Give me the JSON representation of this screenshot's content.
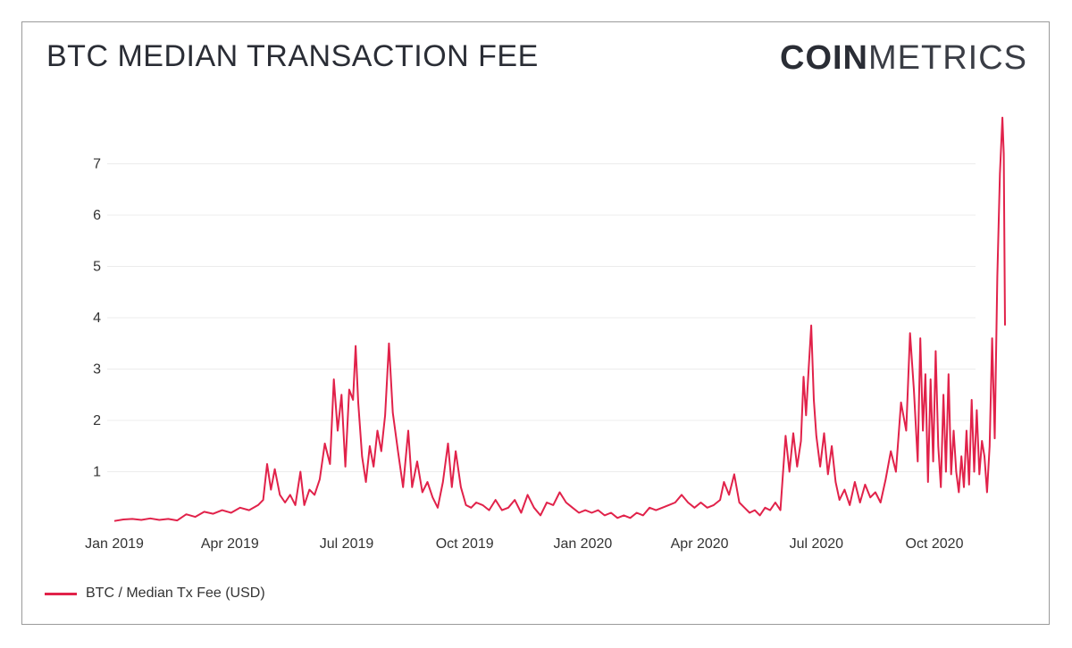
{
  "header": {
    "title": "BTC MEDIAN TRANSACTION FEE",
    "brand_bold": "COIN",
    "brand_light": "METRICS"
  },
  "legend": {
    "label": "BTC / Median Tx Fee (USD)"
  },
  "colors": {
    "series": "#e1224a",
    "grid": "#ececec",
    "text": "#333333"
  },
  "chart_data": {
    "type": "line",
    "title": "BTC MEDIAN TRANSACTION FEE",
    "xlabel": "",
    "ylabel": "",
    "x_range": [
      "2019-01-01",
      "2020-10-28"
    ],
    "ylim": [
      0,
      8
    ],
    "y_ticks": [
      1,
      2,
      3,
      4,
      5,
      6,
      7
    ],
    "x_ticks": [
      {
        "date": "2019-01-01",
        "label": "Jan 2019"
      },
      {
        "date": "2019-04-01",
        "label": "Apr 2019"
      },
      {
        "date": "2019-07-01",
        "label": "Jul 2019"
      },
      {
        "date": "2019-10-01",
        "label": "Oct 2019"
      },
      {
        "date": "2020-01-01",
        "label": "Jan 2020"
      },
      {
        "date": "2020-04-01",
        "label": "Apr 2020"
      },
      {
        "date": "2020-07-01",
        "label": "Jul 2020"
      },
      {
        "date": "2020-10-01",
        "label": "Oct 2020"
      }
    ],
    "grid": true,
    "legend_position": "bottom-left",
    "series": [
      {
        "name": "BTC / Median Tx Fee (USD)",
        "points": [
          [
            "2019-01-01",
            0.04
          ],
          [
            "2019-01-08",
            0.07
          ],
          [
            "2019-01-15",
            0.08
          ],
          [
            "2019-01-22",
            0.06
          ],
          [
            "2019-01-29",
            0.09
          ],
          [
            "2019-02-05",
            0.06
          ],
          [
            "2019-02-12",
            0.08
          ],
          [
            "2019-02-19",
            0.05
          ],
          [
            "2019-02-26",
            0.17
          ],
          [
            "2019-03-05",
            0.12
          ],
          [
            "2019-03-12",
            0.22
          ],
          [
            "2019-03-19",
            0.18
          ],
          [
            "2019-03-26",
            0.25
          ],
          [
            "2019-04-02",
            0.2
          ],
          [
            "2019-04-09",
            0.3
          ],
          [
            "2019-04-16",
            0.25
          ],
          [
            "2019-04-23",
            0.35
          ],
          [
            "2019-04-27",
            0.45
          ],
          [
            "2019-04-30",
            1.15
          ],
          [
            "2019-05-03",
            0.65
          ],
          [
            "2019-05-06",
            1.05
          ],
          [
            "2019-05-10",
            0.55
          ],
          [
            "2019-05-14",
            0.4
          ],
          [
            "2019-05-18",
            0.55
          ],
          [
            "2019-05-22",
            0.35
          ],
          [
            "2019-05-26",
            1.0
          ],
          [
            "2019-05-29",
            0.35
          ],
          [
            "2019-06-02",
            0.65
          ],
          [
            "2019-06-06",
            0.55
          ],
          [
            "2019-06-10",
            0.85
          ],
          [
            "2019-06-14",
            1.55
          ],
          [
            "2019-06-18",
            1.15
          ],
          [
            "2019-06-21",
            2.8
          ],
          [
            "2019-06-24",
            1.8
          ],
          [
            "2019-06-27",
            2.5
          ],
          [
            "2019-06-30",
            1.1
          ],
          [
            "2019-07-03",
            2.6
          ],
          [
            "2019-07-06",
            2.4
          ],
          [
            "2019-07-08",
            3.45
          ],
          [
            "2019-07-10",
            2.35
          ],
          [
            "2019-07-13",
            1.3
          ],
          [
            "2019-07-16",
            0.8
          ],
          [
            "2019-07-19",
            1.5
          ],
          [
            "2019-07-22",
            1.1
          ],
          [
            "2019-07-25",
            1.8
          ],
          [
            "2019-07-28",
            1.4
          ],
          [
            "2019-07-31",
            2.1
          ],
          [
            "2019-08-03",
            3.5
          ],
          [
            "2019-08-06",
            2.15
          ],
          [
            "2019-08-10",
            1.4
          ],
          [
            "2019-08-14",
            0.7
          ],
          [
            "2019-08-18",
            1.8
          ],
          [
            "2019-08-21",
            0.7
          ],
          [
            "2019-08-25",
            1.2
          ],
          [
            "2019-08-29",
            0.6
          ],
          [
            "2019-09-02",
            0.8
          ],
          [
            "2019-09-06",
            0.5
          ],
          [
            "2019-09-10",
            0.3
          ],
          [
            "2019-09-14",
            0.8
          ],
          [
            "2019-09-18",
            1.55
          ],
          [
            "2019-09-21",
            0.7
          ],
          [
            "2019-09-24",
            1.4
          ],
          [
            "2019-09-28",
            0.7
          ],
          [
            "2019-10-02",
            0.35
          ],
          [
            "2019-10-06",
            0.3
          ],
          [
            "2019-10-10",
            0.4
          ],
          [
            "2019-10-15",
            0.35
          ],
          [
            "2019-10-20",
            0.25
          ],
          [
            "2019-10-25",
            0.45
          ],
          [
            "2019-10-30",
            0.25
          ],
          [
            "2019-11-04",
            0.3
          ],
          [
            "2019-11-09",
            0.45
          ],
          [
            "2019-11-14",
            0.2
          ],
          [
            "2019-11-19",
            0.55
          ],
          [
            "2019-11-24",
            0.3
          ],
          [
            "2019-11-29",
            0.15
          ],
          [
            "2019-12-04",
            0.4
          ],
          [
            "2019-12-09",
            0.35
          ],
          [
            "2019-12-14",
            0.6
          ],
          [
            "2019-12-19",
            0.4
          ],
          [
            "2019-12-24",
            0.3
          ],
          [
            "2019-12-29",
            0.2
          ],
          [
            "2020-01-03",
            0.25
          ],
          [
            "2020-01-08",
            0.2
          ],
          [
            "2020-01-13",
            0.25
          ],
          [
            "2020-01-18",
            0.15
          ],
          [
            "2020-01-23",
            0.2
          ],
          [
            "2020-01-28",
            0.1
          ],
          [
            "2020-02-02",
            0.15
          ],
          [
            "2020-02-07",
            0.1
          ],
          [
            "2020-02-12",
            0.2
          ],
          [
            "2020-02-17",
            0.15
          ],
          [
            "2020-02-22",
            0.3
          ],
          [
            "2020-02-27",
            0.25
          ],
          [
            "2020-03-03",
            0.3
          ],
          [
            "2020-03-08",
            0.35
          ],
          [
            "2020-03-13",
            0.4
          ],
          [
            "2020-03-18",
            0.55
          ],
          [
            "2020-03-23",
            0.4
          ],
          [
            "2020-03-28",
            0.3
          ],
          [
            "2020-04-02",
            0.4
          ],
          [
            "2020-04-07",
            0.3
          ],
          [
            "2020-04-12",
            0.35
          ],
          [
            "2020-04-17",
            0.45
          ],
          [
            "2020-04-20",
            0.8
          ],
          [
            "2020-04-24",
            0.55
          ],
          [
            "2020-04-28",
            0.95
          ],
          [
            "2020-05-02",
            0.4
          ],
          [
            "2020-05-06",
            0.3
          ],
          [
            "2020-05-10",
            0.2
          ],
          [
            "2020-05-14",
            0.25
          ],
          [
            "2020-05-18",
            0.15
          ],
          [
            "2020-05-22",
            0.3
          ],
          [
            "2020-05-26",
            0.25
          ],
          [
            "2020-05-30",
            0.4
          ],
          [
            "2020-06-03",
            0.25
          ],
          [
            "2020-06-07",
            1.7
          ],
          [
            "2020-06-10",
            1.0
          ],
          [
            "2020-06-13",
            1.75
          ],
          [
            "2020-06-16",
            1.1
          ],
          [
            "2020-06-19",
            1.6
          ],
          [
            "2020-06-21",
            2.85
          ],
          [
            "2020-06-23",
            2.1
          ],
          [
            "2020-06-25",
            3.0
          ],
          [
            "2020-06-27",
            3.85
          ],
          [
            "2020-06-29",
            2.4
          ],
          [
            "2020-07-01",
            1.7
          ],
          [
            "2020-07-04",
            1.1
          ],
          [
            "2020-07-07",
            1.75
          ],
          [
            "2020-07-10",
            0.95
          ],
          [
            "2020-07-13",
            1.5
          ],
          [
            "2020-07-16",
            0.8
          ],
          [
            "2020-07-19",
            0.45
          ],
          [
            "2020-07-23",
            0.65
          ],
          [
            "2020-07-27",
            0.35
          ],
          [
            "2020-07-31",
            0.8
          ],
          [
            "2020-08-04",
            0.4
          ],
          [
            "2020-08-08",
            0.75
          ],
          [
            "2020-08-12",
            0.5
          ],
          [
            "2020-08-16",
            0.6
          ],
          [
            "2020-08-20",
            0.4
          ],
          [
            "2020-08-24",
            0.85
          ],
          [
            "2020-08-28",
            1.4
          ],
          [
            "2020-09-01",
            1.0
          ],
          [
            "2020-09-05",
            2.35
          ],
          [
            "2020-09-09",
            1.8
          ],
          [
            "2020-09-12",
            3.7
          ],
          [
            "2020-09-15",
            2.6
          ],
          [
            "2020-09-18",
            1.2
          ],
          [
            "2020-09-20",
            3.6
          ],
          [
            "2020-09-22",
            1.8
          ],
          [
            "2020-09-24",
            2.9
          ],
          [
            "2020-09-26",
            0.8
          ],
          [
            "2020-09-28",
            2.8
          ],
          [
            "2020-09-30",
            1.2
          ],
          [
            "2020-10-02",
            3.35
          ],
          [
            "2020-10-04",
            1.5
          ],
          [
            "2020-10-06",
            0.7
          ],
          [
            "2020-10-08",
            2.5
          ],
          [
            "2020-10-10",
            1.0
          ],
          [
            "2020-10-12",
            2.9
          ],
          [
            "2020-10-14",
            0.95
          ],
          [
            "2020-10-16",
            1.8
          ],
          [
            "2020-10-18",
            1.0
          ],
          [
            "2020-10-20",
            0.6
          ],
          [
            "2020-10-22",
            1.3
          ],
          [
            "2020-10-24",
            0.7
          ],
          [
            "2020-10-26",
            1.8
          ],
          [
            "2020-10-28",
            0.75
          ],
          [
            "2020-10-30",
            2.4
          ],
          [
            "2020-11-01",
            1.0
          ],
          [
            "2020-11-03",
            2.2
          ],
          [
            "2020-11-05",
            0.95
          ],
          [
            "2020-11-07",
            1.6
          ],
          [
            "2020-11-09",
            1.3
          ],
          [
            "2020-11-11",
            0.6
          ],
          [
            "2020-11-13",
            1.5
          ],
          [
            "2020-11-15",
            3.6
          ],
          [
            "2020-11-17",
            1.65
          ],
          [
            "2020-11-19",
            4.8
          ],
          [
            "2020-11-21",
            6.8
          ],
          [
            "2020-11-23",
            7.9
          ],
          [
            "2020-11-24",
            7.2
          ],
          [
            "2020-11-25",
            3.85
          ]
        ]
      }
    ]
  }
}
